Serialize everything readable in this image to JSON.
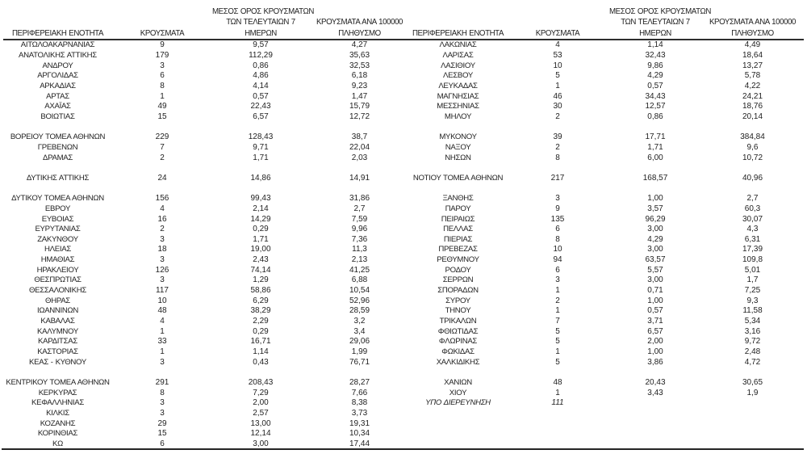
{
  "page": {
    "background_color": "#ffffff",
    "text_color": "#1f1f1f",
    "rule_color": "#1d1d1d"
  },
  "table": {
    "header": {
      "region": "ΠΕΡΙΦΕΡΕΙΑΚΗ ΕΝΟΤΗΤΑ",
      "cases": "ΚΡΟΥΣΜΑΤΑ",
      "avg7_lines": [
        "ΜΕΣΟΣ ΟΡΟΣ ΚΡΟΥΣΜΑΤΩΝ",
        "ΤΩΝ ΤΕΛΕΥΤΑΙΩΝ 7",
        "ΗΜΕΡΩΝ"
      ],
      "per100k_lines": [
        "ΚΡΟΥΣΜΑΤΑ ΑΝΑ 100000",
        "ΠΛΗΘΥΣΜΟ"
      ]
    },
    "rows": [
      {
        "cells": [
          "ΑΙΤΩΛΟΑΚΑΡΝΑΝΙΑΣ",
          "9",
          "9,57",
          "4,27",
          "ΛΑΚΩΝΙΑΣ",
          "4",
          "1,14",
          "4,49"
        ]
      },
      {
        "cells": [
          "ΑΝΑΤΟΛΙΚΗΣ ΑΤΤΙΚΗΣ",
          "179",
          "112,29",
          "35,63",
          "ΛΑΡΙΣΑΣ",
          "53",
          "32,43",
          "18,64"
        ]
      },
      {
        "cells": [
          "ΑΝΔΡΟΥ",
          "3",
          "0,86",
          "32,53",
          "ΛΑΣΙΘΙΟΥ",
          "10",
          "9,86",
          "13,27"
        ]
      },
      {
        "cells": [
          "ΑΡΓΟΛΙΔΑΣ",
          "6",
          "4,86",
          "6,18",
          "ΛΕΣΒΟΥ",
          "5",
          "4,29",
          "5,78"
        ]
      },
      {
        "cells": [
          "ΑΡΚΑΔΙΑΣ",
          "8",
          "4,14",
          "9,23",
          "ΛΕΥΚΑΔΑΣ",
          "1",
          "0,57",
          "4,22"
        ]
      },
      {
        "cells": [
          "ΑΡΤΑΣ",
          "1",
          "0,57",
          "1,47",
          "ΜΑΓΝΗΣΙΑΣ",
          "46",
          "34,43",
          "24,21"
        ]
      },
      {
        "cells": [
          "ΑΧΑΪΑΣ",
          "49",
          "22,43",
          "15,79",
          "ΜΕΣΣΗΝΙΑΣ",
          "30",
          "12,57",
          "18,76"
        ]
      },
      {
        "cells": [
          "ΒΟΙΩΤΙΑΣ",
          "15",
          "6,57",
          "12,72",
          "ΜΗΛΟΥ",
          "2",
          "0,86",
          "20,14"
        ]
      },
      {
        "cells": [
          "",
          "",
          "",
          "",
          "",
          "",
          "",
          ""
        ]
      },
      {
        "cells": [
          "ΒΟΡΕΙΟΥ ΤΟΜΕΑ ΑΘΗΝΩΝ",
          "229",
          "128,43",
          "38,7",
          "ΜΥΚΟΝΟΥ",
          "39",
          "17,71",
          "384,84"
        ]
      },
      {
        "cells": [
          "ΓΡΕΒΕΝΩΝ",
          "7",
          "9,71",
          "22,04",
          "ΝΑΞΟΥ",
          "2",
          "1,71",
          "9,6"
        ]
      },
      {
        "cells": [
          "ΔΡΑΜΑΣ",
          "2",
          "1,71",
          "2,03",
          "ΝΗΣΩΝ",
          "8",
          "6,00",
          "10,72"
        ]
      },
      {
        "cells": [
          "",
          "",
          "",
          "",
          "",
          "",
          "",
          ""
        ]
      },
      {
        "cells": [
          "ΔΥΤΙΚΗΣ ΑΤΤΙΚΗΣ",
          "24",
          "14,86",
          "14,91",
          "ΝΟΤΙΟΥ ΤΟΜΕΑ ΑΘΗΝΩΝ",
          "217",
          "168,57",
          "40,96"
        ]
      },
      {
        "cells": [
          "",
          "",
          "",
          "",
          "",
          "",
          "",
          ""
        ]
      },
      {
        "cells": [
          "ΔΥΤΙΚΟΥ ΤΟΜΕΑ ΑΘΗΝΩΝ",
          "156",
          "99,43",
          "31,86",
          "ΞΑΝΘΗΣ",
          "3",
          "1,00",
          "2,7"
        ]
      },
      {
        "cells": [
          "ΕΒΡΟΥ",
          "4",
          "2,14",
          "2,7",
          "ΠΑΡΟΥ",
          "9",
          "3,57",
          "60,3"
        ]
      },
      {
        "cells": [
          "ΕΥΒΟΙΑΣ",
          "16",
          "14,29",
          "7,59",
          "ΠΕΙΡΑΙΩΣ",
          "135",
          "96,29",
          "30,07"
        ]
      },
      {
        "cells": [
          "ΕΥΡΥΤΑΝΙΑΣ",
          "2",
          "0,29",
          "9,96",
          "ΠΕΛΛΑΣ",
          "6",
          "3,00",
          "4,3"
        ]
      },
      {
        "cells": [
          "ΖΑΚΥΝΘΟΥ",
          "3",
          "1,71",
          "7,36",
          "ΠΙΕΡΙΑΣ",
          "8",
          "4,29",
          "6,31"
        ]
      },
      {
        "cells": [
          "ΗΛΕΙΑΣ",
          "18",
          "19,00",
          "11,3",
          "ΠΡΕΒΕΖΑΣ",
          "10",
          "3,00",
          "17,39"
        ]
      },
      {
        "cells": [
          "ΗΜΑΘΙΑΣ",
          "3",
          "2,43",
          "2,13",
          "ΡΕΘΥΜΝΟΥ",
          "94",
          "63,57",
          "109,8"
        ]
      },
      {
        "cells": [
          "ΗΡΑΚΛΕΙΟΥ",
          "126",
          "74,14",
          "41,25",
          "ΡΟΔΟΥ",
          "6",
          "5,57",
          "5,01"
        ]
      },
      {
        "cells": [
          "ΘΕΣΠΡΩΤΙΑΣ",
          "3",
          "1,29",
          "6,88",
          "ΣΕΡΡΩΝ",
          "3",
          "3,00",
          "1,7"
        ]
      },
      {
        "cells": [
          "ΘΕΣΣΑΛΟΝΙΚΗΣ",
          "117",
          "58,86",
          "10,54",
          "ΣΠΟΡΑΔΩΝ",
          "1",
          "0,71",
          "7,25"
        ]
      },
      {
        "cells": [
          "ΘΗΡΑΣ",
          "10",
          "6,29",
          "52,96",
          "ΣΥΡΟΥ",
          "2",
          "1,00",
          "9,3"
        ]
      },
      {
        "cells": [
          "ΙΩΑΝΝΙΝΩΝ",
          "48",
          "38,29",
          "28,59",
          "ΤΗΝΟΥ",
          "1",
          "0,57",
          "11,58"
        ]
      },
      {
        "cells": [
          "ΚΑΒΑΛΑΣ",
          "4",
          "2,29",
          "3,2",
          "ΤΡΙΚΑΛΩΝ",
          "7",
          "3,71",
          "5,34"
        ]
      },
      {
        "cells": [
          "ΚΑΛΥΜΝΟΥ",
          "1",
          "0,29",
          "3,4",
          "ΦΘΙΩΤΙΔΑΣ",
          "5",
          "6,57",
          "3,16"
        ]
      },
      {
        "cells": [
          "ΚΑΡΔΙΤΣΑΣ",
          "33",
          "16,71",
          "29,06",
          "ΦΛΩΡΙΝΑΣ",
          "5",
          "2,00",
          "9,72"
        ]
      },
      {
        "cells": [
          "ΚΑΣΤΟΡΙΑΣ",
          "1",
          "1,14",
          "1,99",
          "ΦΩΚΙΔΑΣ",
          "1",
          "1,00",
          "2,48"
        ]
      },
      {
        "cells": [
          "ΚΕΑΣ - ΚΥΘΝΟΥ",
          "3",
          "0,43",
          "76,71",
          "ΧΑΛΚΙΔΙΚΗΣ",
          "5",
          "3,86",
          "4,72"
        ]
      },
      {
        "cells": [
          "",
          "",
          "",
          "",
          "",
          "",
          "",
          ""
        ]
      },
      {
        "cells": [
          "ΚΕΝΤΡΙΚΟΥ ΤΟΜΕΑ ΑΘΗΝΩΝ",
          "291",
          "208,43",
          "28,27",
          "ΧΑΝΙΩΝ",
          "48",
          "20,43",
          "30,65"
        ]
      },
      {
        "cells": [
          "ΚΕΡΚΥΡΑΣ",
          "8",
          "7,29",
          "7,66",
          "ΧΙΟΥ",
          "1",
          "3,43",
          "1,9"
        ]
      },
      {
        "cells": [
          "ΚΕΦΑΛΛΗΝΙΑΣ",
          "3",
          "2,00",
          "8,38",
          "ΥΠΟ ΔΙΕΡΕΥΝΗΣΗ",
          "111",
          "",
          ""
        ],
        "right_italic": true
      },
      {
        "cells": [
          "ΚΙΛΚΙΣ",
          "3",
          "2,57",
          "3,73",
          "",
          "",
          "",
          ""
        ]
      },
      {
        "cells": [
          "ΚΟΖΑΝΗΣ",
          "29",
          "13,00",
          "19,31",
          "",
          "",
          "",
          ""
        ]
      },
      {
        "cells": [
          "ΚΟΡΙΝΘΙΑΣ",
          "15",
          "12,14",
          "10,34",
          "",
          "",
          "",
          ""
        ]
      },
      {
        "cells": [
          "ΚΩ",
          "6",
          "3,00",
          "17,44",
          "",
          "",
          "",
          ""
        ]
      }
    ]
  }
}
